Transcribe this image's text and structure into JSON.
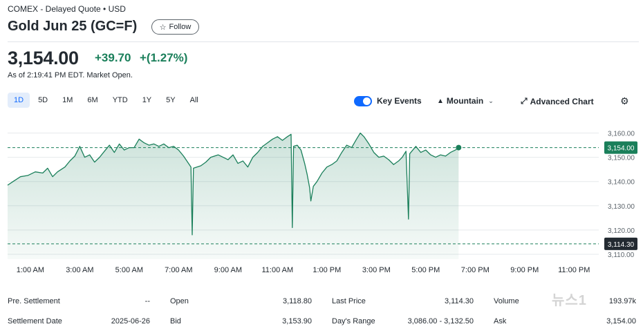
{
  "header": {
    "exchange_line": "COMEX - Delayed Quote • USD",
    "title": "Gold Jun 25 (GC=F)",
    "follow_label": "Follow",
    "follow_icon": "star-outline-icon"
  },
  "quote": {
    "price": "3,154.00",
    "change": "+39.70",
    "change_pct": "+(1.27%)",
    "as_of": "As of 2:19:41 PM EDT. Market Open.",
    "positive_color": "#1a7f5a"
  },
  "toolbar": {
    "ranges": [
      "1D",
      "5D",
      "1M",
      "6M",
      "YTD",
      "1Y",
      "5Y",
      "All"
    ],
    "active_range": "1D",
    "key_events_label": "Key Events",
    "key_events_on": true,
    "chart_type_label": "Mountain",
    "advanced_chart_label": "Advanced Chart",
    "accent_color": "#0f69ff"
  },
  "chart_data": {
    "type": "area",
    "x_tick_labels": [
      "1:00 AM",
      "3:00 AM",
      "5:00 AM",
      "7:00 AM",
      "9:00 AM",
      "11:00 AM",
      "1:00 PM",
      "3:00 PM",
      "5:00 PM",
      "7:00 PM",
      "9:00 PM",
      "11:00 PM"
    ],
    "y_tick_labels": [
      "3,160.00",
      "3,150.00",
      "3,140.00",
      "3,130.00",
      "3,120.00",
      "3,110.00"
    ],
    "y_ticks": [
      3160,
      3150,
      3140,
      3130,
      3120,
      3110
    ],
    "ylim": [
      3108,
      3163
    ],
    "x_range_hours": [
      0.08,
      24.0
    ],
    "current_price": 3154.0,
    "current_price_label": "3,154.00",
    "previous_close": 3114.3,
    "previous_close_label": "3,114.30",
    "grid": true,
    "line_color": "#1a7f5a",
    "series": [
      {
        "points": [
          [
            0.08,
            3138.5
          ],
          [
            0.3,
            3140.0
          ],
          [
            0.6,
            3142.0
          ],
          [
            0.9,
            3142.5
          ],
          [
            1.2,
            3144.0
          ],
          [
            1.5,
            3143.5
          ],
          [
            1.7,
            3145.5
          ],
          [
            1.9,
            3142.0
          ],
          [
            2.1,
            3144.0
          ],
          [
            2.4,
            3146.0
          ],
          [
            2.6,
            3148.5
          ],
          [
            2.8,
            3150.5
          ],
          [
            3.0,
            3154.5
          ],
          [
            3.2,
            3150.0
          ],
          [
            3.4,
            3151.0
          ],
          [
            3.6,
            3148.0
          ],
          [
            3.8,
            3150.0
          ],
          [
            4.0,
            3152.5
          ],
          [
            4.2,
            3155.0
          ],
          [
            4.4,
            3152.0
          ],
          [
            4.6,
            3155.5
          ],
          [
            4.8,
            3153.0
          ],
          [
            5.0,
            3154.0
          ],
          [
            5.2,
            3154.0
          ],
          [
            5.4,
            3157.5
          ],
          [
            5.6,
            3156.0
          ],
          [
            5.8,
            3155.0
          ],
          [
            6.0,
            3155.5
          ],
          [
            6.2,
            3154.5
          ],
          [
            6.4,
            3155.5
          ],
          [
            6.6,
            3154.0
          ],
          [
            6.8,
            3154.5
          ],
          [
            7.0,
            3153.0
          ],
          [
            7.2,
            3150.5
          ],
          [
            7.4,
            3147.5
          ],
          [
            7.5,
            3146.0
          ],
          [
            7.55,
            3118.0
          ],
          [
            7.6,
            3145.5
          ],
          [
            7.9,
            3146.5
          ],
          [
            8.1,
            3148.0
          ],
          [
            8.3,
            3150.0
          ],
          [
            8.6,
            3151.0
          ],
          [
            8.8,
            3150.0
          ],
          [
            9.0,
            3149.0
          ],
          [
            9.2,
            3151.0
          ],
          [
            9.4,
            3147.5
          ],
          [
            9.6,
            3148.5
          ],
          [
            9.8,
            3146.0
          ],
          [
            10.0,
            3150.0
          ],
          [
            10.2,
            3152.0
          ],
          [
            10.4,
            3154.5
          ],
          [
            10.6,
            3156.0
          ],
          [
            10.8,
            3157.5
          ],
          [
            11.0,
            3158.5
          ],
          [
            11.2,
            3157.0
          ],
          [
            11.4,
            3158.5
          ],
          [
            11.55,
            3159.5
          ],
          [
            11.6,
            3121.0
          ],
          [
            11.65,
            3154.5
          ],
          [
            11.8,
            3155.0
          ],
          [
            11.95,
            3153.0
          ],
          [
            12.1,
            3147.5
          ],
          [
            12.2,
            3143.0
          ],
          [
            12.3,
            3137.5
          ],
          [
            12.35,
            3132.0
          ],
          [
            12.45,
            3138.0
          ],
          [
            12.6,
            3140.0
          ],
          [
            12.8,
            3143.5
          ],
          [
            13.0,
            3146.0
          ],
          [
            13.2,
            3147.0
          ],
          [
            13.4,
            3148.5
          ],
          [
            13.6,
            3152.0
          ],
          [
            13.8,
            3155.0
          ],
          [
            14.0,
            3154.0
          ],
          [
            14.2,
            3157.5
          ],
          [
            14.35,
            3160.0
          ],
          [
            14.5,
            3158.5
          ],
          [
            14.7,
            3155.5
          ],
          [
            14.9,
            3152.0
          ],
          [
            15.1,
            3150.0
          ],
          [
            15.3,
            3150.5
          ],
          [
            15.5,
            3149.0
          ],
          [
            15.7,
            3147.0
          ],
          [
            15.9,
            3148.5
          ],
          [
            16.05,
            3150.0
          ],
          [
            16.2,
            3152.5
          ],
          [
            16.3,
            3124.5
          ],
          [
            16.35,
            3151.5
          ],
          [
            16.6,
            3154.5
          ],
          [
            16.8,
            3152.0
          ],
          [
            17.0,
            3153.0
          ],
          [
            17.2,
            3151.0
          ],
          [
            17.4,
            3150.0
          ],
          [
            17.6,
            3151.0
          ],
          [
            17.8,
            3150.5
          ],
          [
            18.0,
            3152.0
          ],
          [
            18.2,
            3153.0
          ],
          [
            18.33,
            3154.0
          ]
        ]
      }
    ]
  },
  "stats": [
    [
      {
        "label": "Pre. Settlement",
        "value": "--"
      },
      {
        "label": "Open",
        "value": "3,118.80"
      },
      {
        "label": "Last Price",
        "value": "3,114.30"
      },
      {
        "label": "Volume",
        "value": "193.97k"
      }
    ],
    [
      {
        "label": "Settlement Date",
        "value": "2025-06-26"
      },
      {
        "label": "Bid",
        "value": "3,153.90"
      },
      {
        "label": "Day's Range",
        "value": "3,086.00 - 3,132.50"
      },
      {
        "label": "Ask",
        "value": "3,154.00"
      }
    ]
  ],
  "watermark": "뉴스1"
}
